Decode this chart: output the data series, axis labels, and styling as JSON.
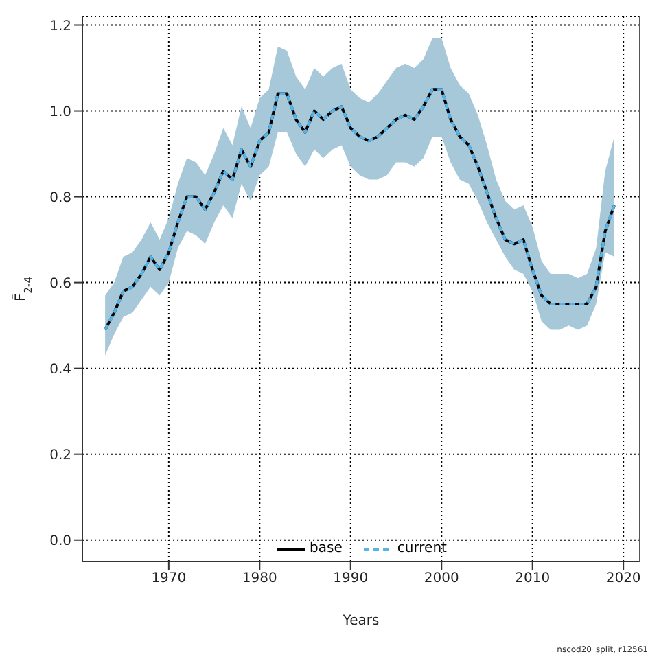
{
  "chart_data": {
    "type": "line",
    "xlabel": "Years",
    "ylabel": "F̄$_{2-4}$",
    "x": [
      1963,
      1964,
      1965,
      1966,
      1967,
      1968,
      1969,
      1970,
      1971,
      1972,
      1973,
      1974,
      1975,
      1976,
      1977,
      1978,
      1979,
      1980,
      1981,
      1982,
      1983,
      1984,
      1985,
      1986,
      1987,
      1988,
      1989,
      1990,
      1991,
      1992,
      1993,
      1994,
      1995,
      1996,
      1997,
      1998,
      1999,
      2000,
      2001,
      2002,
      2003,
      2004,
      2005,
      2006,
      2007,
      2008,
      2009,
      2010,
      2011,
      2012,
      2013,
      2014,
      2015,
      2016,
      2017,
      2018,
      2019
    ],
    "series": [
      {
        "name": "base",
        "color": "#000000",
        "line_style": "solid",
        "values": [
          0.49,
          0.53,
          0.58,
          0.59,
          0.62,
          0.66,
          0.63,
          0.67,
          0.74,
          0.8,
          0.8,
          0.77,
          0.81,
          0.86,
          0.84,
          0.91,
          0.87,
          0.93,
          0.95,
          1.04,
          1.04,
          0.98,
          0.95,
          1.0,
          0.98,
          1.0,
          1.01,
          0.96,
          0.94,
          0.93,
          0.94,
          0.96,
          0.98,
          0.99,
          0.98,
          1.01,
          1.05,
          1.05,
          0.98,
          0.94,
          0.92,
          0.87,
          0.81,
          0.75,
          0.7,
          0.69,
          0.7,
          0.63,
          0.57,
          0.55,
          0.55,
          0.55,
          0.55,
          0.55,
          0.59,
          0.72,
          0.78
        ]
      },
      {
        "name": "current",
        "color": "#56b4e9",
        "line_style": "dashed",
        "values": [
          0.49,
          0.53,
          0.58,
          0.59,
          0.62,
          0.66,
          0.63,
          0.67,
          0.74,
          0.8,
          0.8,
          0.77,
          0.81,
          0.86,
          0.84,
          0.91,
          0.87,
          0.93,
          0.95,
          1.04,
          1.04,
          0.98,
          0.95,
          1.0,
          0.98,
          1.0,
          1.01,
          0.96,
          0.94,
          0.93,
          0.94,
          0.96,
          0.98,
          0.99,
          0.98,
          1.01,
          1.05,
          1.05,
          0.98,
          0.94,
          0.92,
          0.87,
          0.81,
          0.75,
          0.7,
          0.69,
          0.7,
          0.63,
          0.57,
          0.55,
          0.55,
          0.55,
          0.55,
          0.55,
          0.59,
          0.72,
          0.78
        ],
        "lower": [
          0.43,
          0.48,
          0.52,
          0.53,
          0.56,
          0.59,
          0.57,
          0.6,
          0.68,
          0.72,
          0.71,
          0.69,
          0.74,
          0.78,
          0.75,
          0.83,
          0.79,
          0.85,
          0.87,
          0.95,
          0.95,
          0.9,
          0.87,
          0.91,
          0.89,
          0.91,
          0.92,
          0.87,
          0.85,
          0.84,
          0.84,
          0.85,
          0.88,
          0.88,
          0.87,
          0.89,
          0.94,
          0.94,
          0.88,
          0.84,
          0.83,
          0.79,
          0.74,
          0.7,
          0.66,
          0.63,
          0.62,
          0.58,
          0.51,
          0.49,
          0.49,
          0.5,
          0.49,
          0.5,
          0.55,
          0.67,
          0.66
        ],
        "upper": [
          0.57,
          0.6,
          0.66,
          0.67,
          0.7,
          0.74,
          0.7,
          0.75,
          0.83,
          0.89,
          0.88,
          0.85,
          0.9,
          0.96,
          0.92,
          1.01,
          0.96,
          1.03,
          1.05,
          1.15,
          1.14,
          1.08,
          1.05,
          1.1,
          1.08,
          1.1,
          1.11,
          1.05,
          1.03,
          1.02,
          1.04,
          1.07,
          1.1,
          1.11,
          1.1,
          1.12,
          1.17,
          1.17,
          1.1,
          1.06,
          1.04,
          0.99,
          0.92,
          0.84,
          0.79,
          0.77,
          0.78,
          0.73,
          0.65,
          0.62,
          0.62,
          0.62,
          0.61,
          0.62,
          0.68,
          0.86,
          0.94
        ]
      }
    ],
    "xlim": [
      1960.5,
      2021.8
    ],
    "xticks": [
      1970,
      1980,
      1990,
      2000,
      2010,
      2020
    ],
    "ylim": [
      -0.05,
      1.22
    ],
    "yticks": [
      {
        "value": 0,
        "label": "0.0"
      },
      {
        "value": 0.2,
        "label": "0.2"
      },
      {
        "value": 0.4,
        "label": "0.4"
      },
      {
        "value": 0.6,
        "label": "0.6"
      },
      {
        "value": 0.8,
        "label": "0.8"
      },
      {
        "value": 1,
        "label": "1.0"
      },
      {
        "value": 1.2,
        "label": "1.2"
      }
    ],
    "grid": true,
    "legend": "bottom",
    "marker": "none",
    "annotations": [
      "nscod20_split, r12561"
    ]
  }
}
